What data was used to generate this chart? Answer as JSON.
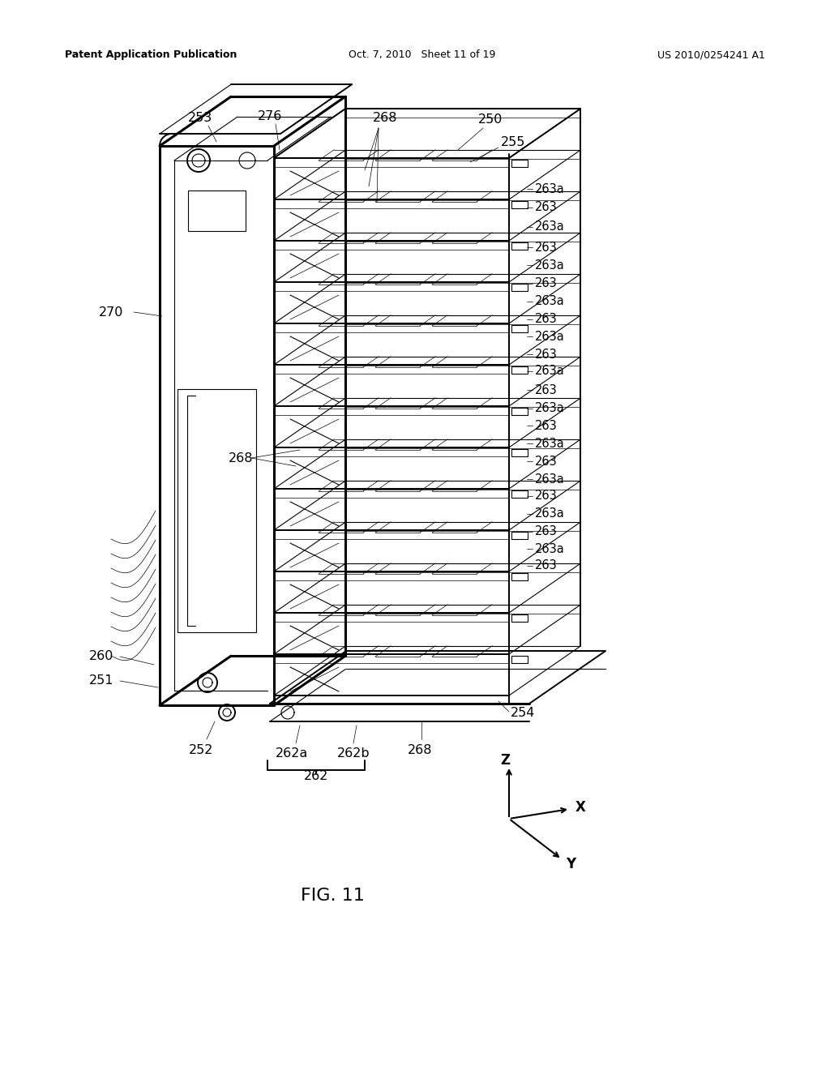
{
  "title": "FIG. 11",
  "header_left": "Patent Application Publication",
  "header_center": "Oct. 7, 2010   Sheet 11 of 19",
  "header_right": "US 2010/0254241 A1",
  "background_color": "#ffffff",
  "line_color": "#000000",
  "lw_thick": 2.2,
  "lw_main": 1.4,
  "lw_thin": 0.8,
  "lw_hair": 0.5,
  "fs_label": 11.5,
  "fs_title": 16,
  "fs_header": 9
}
